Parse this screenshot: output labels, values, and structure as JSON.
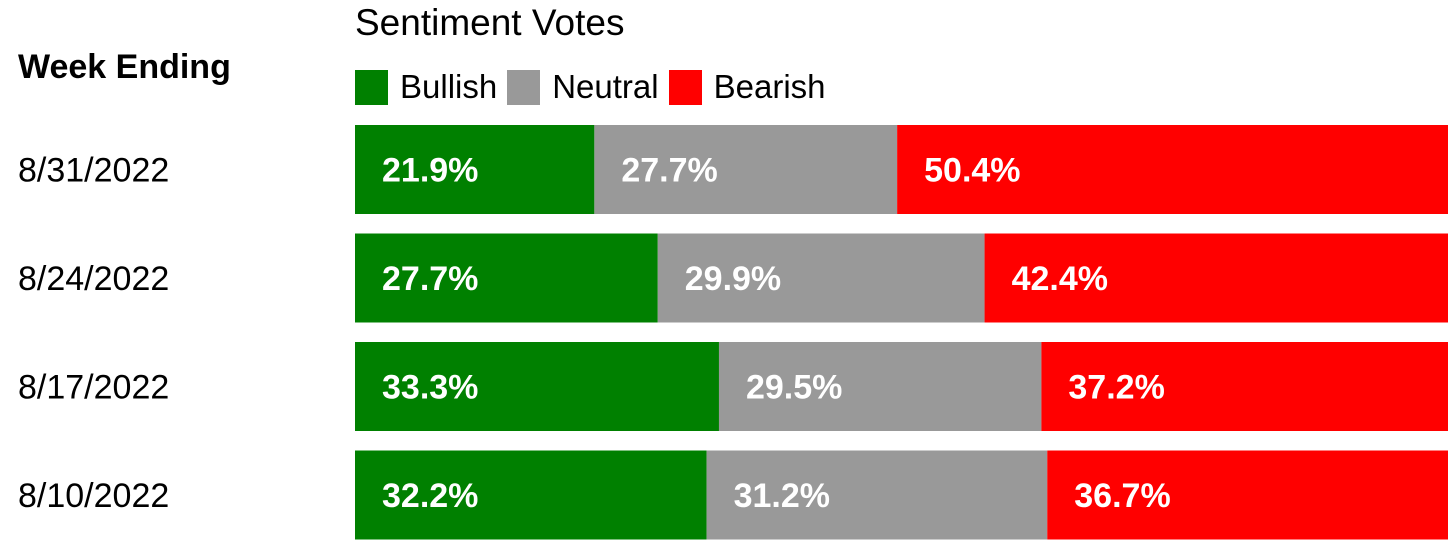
{
  "column_header": "Week Ending",
  "chart_data": {
    "type": "bar",
    "orientation": "horizontal",
    "stacked": true,
    "percent": true,
    "title": "Sentiment Votes",
    "categories": [
      "8/31/2022",
      "8/24/2022",
      "8/17/2022",
      "8/10/2022"
    ],
    "series": [
      {
        "name": "Bullish",
        "color": "#008000",
        "values": [
          21.9,
          27.7,
          33.3,
          32.2
        ],
        "labels": [
          "21.9%",
          "27.7%",
          "33.3%",
          "32.2%"
        ]
      },
      {
        "name": "Neutral",
        "color": "#999999",
        "values": [
          27.7,
          29.9,
          29.5,
          31.2
        ],
        "labels": [
          "27.7%",
          "29.9%",
          "29.5%",
          "31.2%"
        ]
      },
      {
        "name": "Bearish",
        "color": "#ff0000",
        "values": [
          50.4,
          42.4,
          37.2,
          36.7
        ],
        "labels": [
          "50.4%",
          "42.4%",
          "37.2%",
          "36.7%"
        ]
      }
    ],
    "legend_position": "top",
    "grid": false
  }
}
